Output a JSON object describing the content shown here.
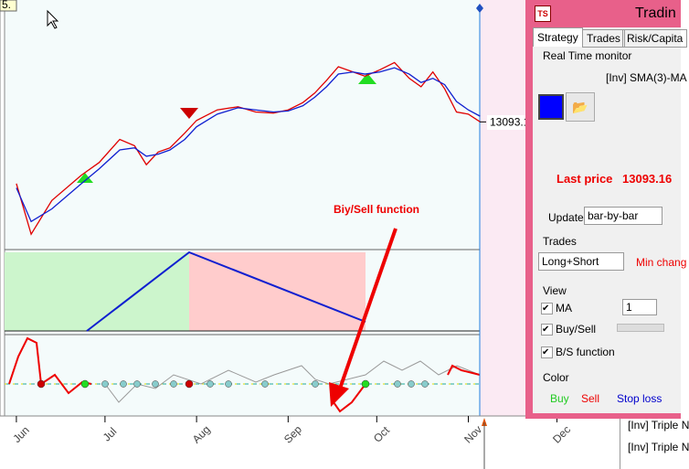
{
  "corner_label": "5.",
  "chart_data": {
    "type": "line",
    "x": [
      0,
      5,
      12,
      22,
      28,
      35,
      40,
      44,
      48,
      52,
      57,
      61,
      68,
      75,
      81,
      87,
      92,
      97,
      101,
      105,
      109,
      114,
      118,
      123,
      128,
      133,
      137,
      141,
      145,
      149,
      153,
      157
    ],
    "series": [
      {
        "color": "#e00000",
        "values": [
          12800,
          12560,
          12720,
          12840,
          12900,
          13010,
          12980,
          12890,
          12950,
          12970,
          13040,
          13100,
          13150,
          13165,
          13140,
          13135,
          13150,
          13185,
          13230,
          13290,
          13355,
          13330,
          13310,
          13340,
          13375,
          13300,
          13260,
          13330,
          13250,
          13140,
          13130,
          13093
        ]
      },
      {
        "color": "#1020d0",
        "values": [
          12780,
          12620,
          12680,
          12800,
          12870,
          12960,
          12970,
          12930,
          12940,
          12960,
          13010,
          13070,
          13130,
          13160,
          13150,
          13140,
          13145,
          13170,
          13210,
          13260,
          13320,
          13330,
          13320,
          13330,
          13350,
          13320,
          13280,
          13300,
          13270,
          13190,
          13150,
          13120
        ]
      }
    ],
    "xlim": [
      -4,
      224
    ],
    "ylim": [
      12500,
      13650
    ],
    "xticks": [
      {
        "value": 0,
        "label": "Jun"
      },
      {
        "value": 30,
        "label": "Jul"
      },
      {
        "value": 61,
        "label": "Aug"
      },
      {
        "value": 92,
        "label": "Sep"
      },
      {
        "value": 122,
        "label": "Oct"
      },
      {
        "value": 153,
        "label": "Nov"
      },
      {
        "value": 183,
        "label": "Dec"
      }
    ],
    "last_value_label": 13093.1,
    "annotation": "Biy/Sell function"
  },
  "window": {
    "title": "Tradin",
    "tabs": [
      "Strategy",
      "Trades",
      "Risk/Capita"
    ],
    "monitor_label": "Real Time monitor",
    "strategy_name": "[Inv] SMA(3)-MA",
    "last_price_label": "Last price",
    "last_price": 13093.16,
    "update_label": "Update",
    "update_value": "bar-by-bar",
    "trades_label": "Trades",
    "trades_value": "Long+Short",
    "min_change": "Min chang",
    "view_label": "View",
    "ma_label": "MA",
    "ma_value": 1,
    "buysell_label": "Buy/Sell",
    "bs_function_label": "B/S function",
    "color_label": "Color",
    "buy": "Buy",
    "sell": "Sell",
    "stop_loss": "Stop loss"
  },
  "list_rows": [
    "[Inv] Triple N",
    "[Inv] Triple N"
  ]
}
